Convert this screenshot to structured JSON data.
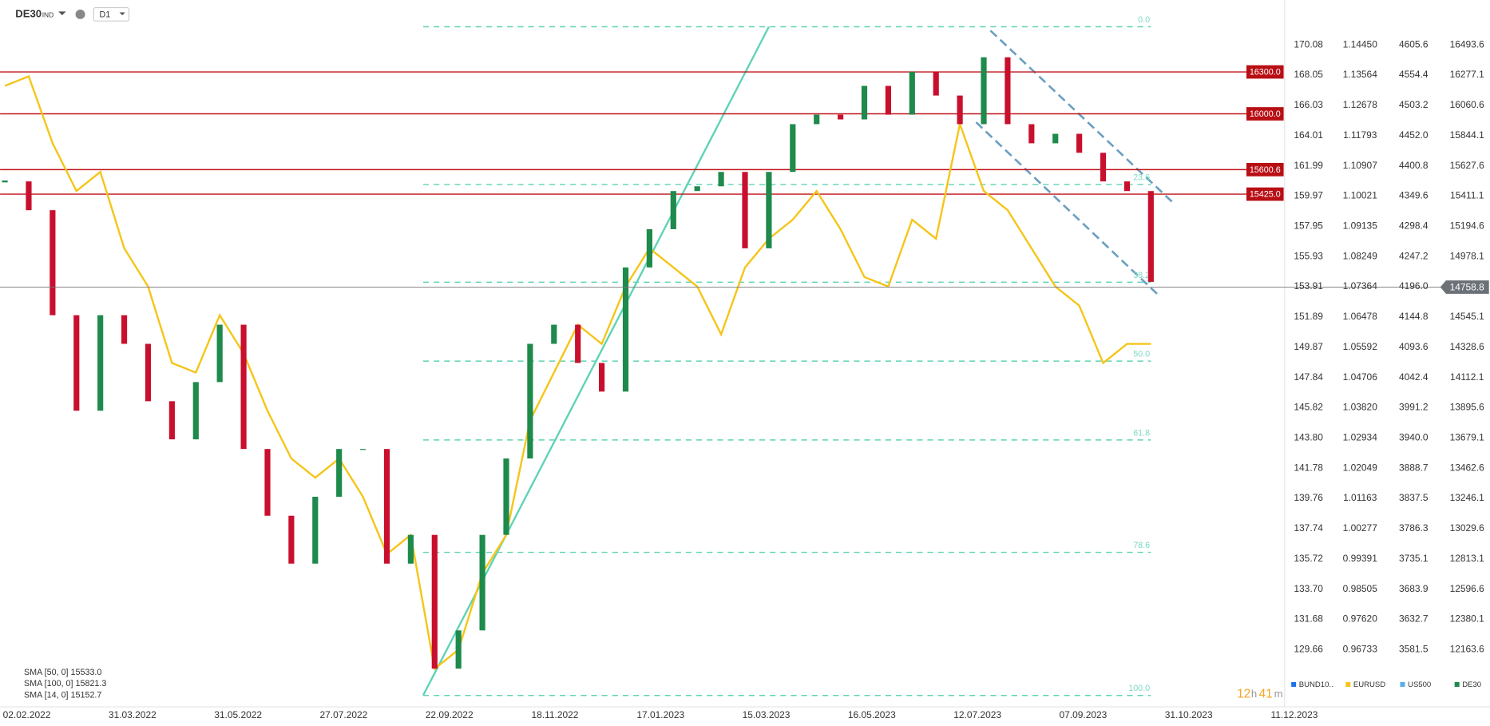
{
  "header": {
    "symbol": "DE30",
    "market": "IND",
    "timeframe": "D1"
  },
  "price_axis": {
    "rows": [
      [
        "170.08",
        "1.14450",
        "4605.6",
        "16493.6"
      ],
      [
        "168.05",
        "1.13564",
        "4554.4",
        "16277.1"
      ],
      [
        "166.03",
        "1.12678",
        "4503.2",
        "16060.6"
      ],
      [
        "164.01",
        "1.11793",
        "4452.0",
        "15844.1"
      ],
      [
        "161.99",
        "1.10907",
        "4400.8",
        "15627.6"
      ],
      [
        "159.97",
        "1.10021",
        "4349.6",
        "15411.1"
      ],
      [
        "157.95",
        "1.09135",
        "4298.4",
        "15194.6"
      ],
      [
        "155.93",
        "1.08249",
        "4247.2",
        "14978.1"
      ],
      [
        "153.91",
        "1.07364",
        "4196.0",
        null
      ],
      [
        "151.89",
        "1.06478",
        "4144.8",
        "14545.1"
      ],
      [
        "149.87",
        "1.05592",
        "4093.6",
        "14328.6"
      ],
      [
        "147.84",
        "1.04706",
        "4042.4",
        "14112.1"
      ],
      [
        "145.82",
        "1.03820",
        "3991.2",
        "13895.6"
      ],
      [
        "143.80",
        "1.02934",
        "3940.0",
        "13679.1"
      ],
      [
        "141.78",
        "1.02049",
        "3888.7",
        "13462.6"
      ],
      [
        "139.76",
        "1.01163",
        "3837.5",
        "13246.1"
      ],
      [
        "137.74",
        "1.00277",
        "3786.3",
        "13029.6"
      ],
      [
        "135.72",
        "0.99391",
        "3735.1",
        "12813.1"
      ],
      [
        "133.70",
        "0.98505",
        "3683.9",
        "12596.6"
      ],
      [
        "131.68",
        "0.97620",
        "3632.7",
        "12380.1"
      ],
      [
        "129.66",
        "0.96733",
        "3581.5",
        "12163.6"
      ]
    ]
  },
  "current_price": "14758.8",
  "levels": [
    "16300.0",
    "16000.0",
    "15600.6",
    "15425.0"
  ],
  "fib_levels": [
    "0.0",
    "23.6",
    "38.2",
    "50.0",
    "61.8",
    "78.6",
    "100.0"
  ],
  "date_axis": [
    "02.02.2022",
    "31.03.2022",
    "31.05.2022",
    "27.07.2022",
    "22.09.2022",
    "18.11.2022",
    "17.01.2023",
    "15.03.2023",
    "16.05.2023",
    "12.07.2023",
    "07.09.2023",
    "31.10.2023",
    "11.12.2023"
  ],
  "price_lines": {
    "de30": [
      15516,
      15310,
      14558,
      13874,
      14558,
      14353,
      13942,
      13669,
      14079,
      14490,
      13600,
      13122,
      12779,
      13258,
      13600,
      13600,
      12779,
      12985,
      12027,
      12301,
      12985,
      13532,
      14353,
      14490,
      14216,
      14011,
      14900,
      15174,
      15447,
      15481,
      15584,
      15037,
      15584,
      15926,
      15994,
      15960,
      16200,
      15994,
      16302,
      16131,
      15926,
      16405,
      15926,
      15789,
      15857,
      15721,
      15516,
      15447,
      14797
    ],
    "eurusd": [
      1.1325,
      1.1353,
      1.1157,
      1.1017,
      1.1073,
      1.0849,
      1.0737,
      1.0513,
      1.0485,
      1.0653,
      1.0541,
      1.0373,
      1.0233,
      1.0177,
      1.0233,
      1.0121,
      0.9953,
      1.0009,
      0.9617,
      0.9673,
      0.9897,
      1.0009,
      1.0345,
      1.0485,
      1.0625,
      1.0569,
      1.0737,
      1.0849,
      1.0793,
      1.0737,
      1.0597,
      1.0793,
      1.0877,
      1.0933,
      1.1017,
      1.0905,
      1.0765,
      1.0737,
      1.0933,
      1.0877,
      1.1213,
      1.1017,
      1.0961,
      1.0849,
      1.0737,
      1.0681,
      1.0513,
      1.0569,
      1.0569
    ]
  },
  "indicators": [
    "SMA [50, 0]  15533.0",
    "SMA [100, 0]  15821.3",
    "SMA [14, 0]  15152.7"
  ],
  "timer": {
    "hours": "12",
    "h": "h",
    "minutes": "41",
    "m": "m"
  },
  "instruments": [
    "BUND10..",
    "EURUSD",
    "US500",
    "DE30"
  ]
}
